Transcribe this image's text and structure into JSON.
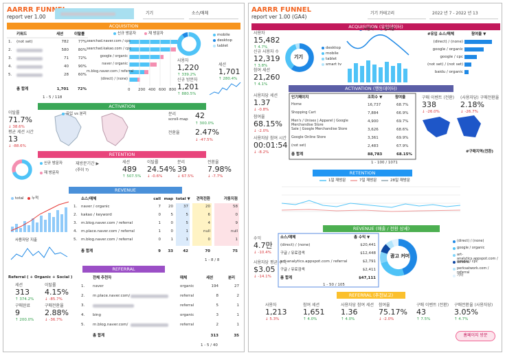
{
  "left": {
    "title": "AARRR FUNNEL",
    "subtitle": "report ver 1.00",
    "filters": [
      "기기",
      "소스/매체"
    ],
    "acquisition": {
      "header": "ACQUISITION",
      "table": {
        "columns": [
          "키워드",
          "세션",
          "이탈률"
        ],
        "rows": [
          {
            "rank": "1.",
            "keyword": "(not set)",
            "sessions": "782",
            "bounce": "77%"
          },
          {
            "rank": "2.",
            "sessions": "580",
            "bounce": "80%"
          },
          {
            "rank": "3.",
            "sessions": "71",
            "bounce": "72%"
          },
          {
            "rank": "4.",
            "sessions": "40",
            "bounce": "90%"
          },
          {
            "rank": "5.",
            "sessions": "28",
            "bounce": "60%"
          }
        ],
        "total": {
          "label": "총 합계",
          "sessions": "1,701",
          "bounce": "72%"
        },
        "pagination": "1 - 5 / 118"
      },
      "legend": [
        "신규 방문자",
        "재 방문자"
      ],
      "sources": [
        "searchad.naver.com / cpc",
        "searchad.kakao.com / cpc",
        "google / organic",
        "naver / organic",
        "m.blog.naver.com / referral",
        "(direct) / (none)"
      ],
      "axis": [
        "0",
        "200",
        "400",
        "600",
        "800"
      ],
      "device_legend": [
        "mobile",
        "desktop",
        "tablet"
      ],
      "users": {
        "label": "사용자",
        "value": "1,220",
        "change": "↑ 339.2%"
      },
      "new_users": {
        "label": "신규 방문자",
        "value": "1,201",
        "change": "↑ 880.5%"
      },
      "sessions": {
        "label": "세션",
        "value": "1,701",
        "change": "↑ 280.4%"
      }
    },
    "activation": {
      "header": "ACTIVATION",
      "map_legend": "유입 vs 분리",
      "bounce": {
        "label": "이탈률",
        "value": "71.7%",
        "change": "↓ 38.6%"
      },
      "duration": {
        "label": "평균 세션 시간",
        "value": "13",
        "change": "↓ -88.6%"
      },
      "scroll": {
        "label": "분리",
        "sublabel": "scroll-map",
        "value": "42",
        "change": "↑ 300.0%"
      },
      "conversion": {
        "label": "전환율",
        "value": "2.47%",
        "change": "↓ -47.5%"
      }
    },
    "retention": {
      "header": "RETENTION",
      "legend": [
        "신규 방문자",
        "재 방문자"
      ],
      "period": "재방문기간 ▶",
      "period_sub": "(주이 ?)",
      "stats": [
        {
          "label": "세션",
          "value": "489",
          "change": "↑ 507.5%"
        },
        {
          "label": "이탈률",
          "value": "24.54%",
          "change": "↓ -0.6%"
        },
        {
          "label": "분리",
          "value": "39",
          "change": "↓ 67.5%"
        },
        {
          "label": "전환율",
          "value": "7.98%",
          "change": "↓ -7.7%"
        }
      ]
    },
    "revenue": {
      "header": "REVENUE",
      "chart_legend": [
        "total",
        "누적"
      ],
      "chart2_legend": "사용자당 지출",
      "table": {
        "columns": [
          "소스/매체",
          "call",
          "map",
          "total ▼",
          "견적전환",
          "거동지점"
        ],
        "rows": [
          {
            "rank": "1.",
            "source": "naver / organic",
            "values": [
              "7",
              "20",
              "37",
              "20",
              "58"
            ]
          },
          {
            "rank": "2.",
            "source": "kakao / keyword",
            "values": [
              "0",
              "5",
              "5",
              "6",
              "0"
            ]
          },
          {
            "rank": "3.",
            "source": "m.blog.naver.com / referral",
            "values": [
              "1",
              "0",
              "5",
              "4",
              "9"
            ]
          },
          {
            "rank": "4.",
            "source": "m.place.naver.com / referral",
            "values": [
              "1",
              "0",
              "1",
              "null",
              "null"
            ]
          },
          {
            "rank": "5.",
            "source": "m.blog.naver.com / referral",
            "values": [
              "0",
              "1",
              "1",
              "0",
              "1"
            ]
          }
        ],
        "total": {
          "label": "총 합계",
          "values": [
            "9",
            "33",
            "42",
            "70",
            "75"
          ]
        },
        "pagination": "1 - 8 / 8"
      }
    },
    "referral": {
      "header": "REFERRAL",
      "title": "Referral ( + Organic + Social )",
      "stats": [
        {
          "label": "세션",
          "value": "313",
          "change": "↑ 374.2%"
        },
        {
          "label": "이탈률",
          "value": "4.15%",
          "change": "↓ -85.7%"
        },
        {
          "label": "구매완료",
          "value": "9",
          "change": "↑ 200.0%"
        },
        {
          "label": "구매전환율",
          "value": "2.88%",
          "change": "↓ -36.7%"
        }
      ],
      "table": {
        "columns": [
          "전체 추천자",
          "매체",
          "세션",
          "분리"
        ],
        "rows": [
          {
            "rank": "1.",
            "name": "naver",
            "medium": "organic",
            "sessions": "194",
            "conv": "27"
          },
          {
            "rank": "2.",
            "name": "m.place.naver.com/",
            "medium": "referral",
            "sessions": "8",
            "conv": "2"
          },
          {
            "rank": "3.",
            "medium": "referral",
            "sessions": "5",
            "conv": "1"
          },
          {
            "rank": "4.",
            "name": "bing",
            "medium": "organic",
            "sessions": "3",
            "conv": "1"
          },
          {
            "rank": "5.",
            "name": "m.blog.naver.com/",
            "medium": "referral",
            "sessions": "2",
            "conv": "1"
          }
        ],
        "total": {
          "label": "총 합계",
          "sessions": "313",
          "conv": "35"
        },
        "pagination": "1 - 5 / 40"
      }
    }
  },
  "right": {
    "title": "AARRR FUNNEL",
    "subtitle": "report ver 1.00 (GA4)",
    "filters": [
      "기기 카테고리",
      "2022 년 7 - 2022 년 13"
    ],
    "acquisition": {
      "header": "ACQUISITION (유입데이터)",
      "stats": [
        {
          "label": "사용자",
          "value": "15,482",
          "change": "↑ 4.7%"
        },
        {
          "label": "신규 사용자 수",
          "value": "12,319",
          "change": "↑ 3.8%"
        },
        {
          "label": "참여 세션",
          "value": "21,260",
          "change": "↑ 4.1%"
        }
      ],
      "donut_label": "기기",
      "device_legend": [
        "desktop",
        "mobile",
        "tablet",
        "smart tv"
      ],
      "chart_legend": [
        "사용자",
        "참여율"
      ],
      "table": {
        "columns": [
          "#유입 소스/매체",
          "참여율 ▼"
        ],
        "rows": [
          "(direct) / (none)",
          "google / organic",
          "google / cpc",
          "(not set) / (not set)",
          "baidu / organic"
        ]
      }
    },
    "activation": {
      "header": "ACTIVATION (행동데이터)",
      "stats": [
        {
          "label": "사용자당 세션",
          "value": "1.37",
          "change": "↓ -0.8%"
        },
        {
          "label": "참여율",
          "value": "68.15%",
          "change": "↓ -2.0%"
        },
        {
          "label": "사용자당 참여 시간",
          "value": "00:01:54",
          "change": "↓ -8.2%"
        }
      ],
      "table": {
        "columns": [
          "인기페이지",
          "조회수 ▼",
          "참여율"
        ],
        "rows": [
          [
            "Home",
            "16,737",
            "68.7%"
          ],
          [
            "Shopping Cart",
            "7,884",
            "66.9%"
          ],
          [
            "Men's / Unisex | Apparel | Google Merchandise Store",
            "4,900",
            "69.7%"
          ],
          [
            "Sale | Google Merchandise Store",
            "3,626",
            "68.6%"
          ],
          [
            "Google Online Store",
            "3,361",
            "69.9%"
          ],
          [
            "(not set)",
            "2,483",
            "67.9%"
          ]
        ],
        "total": [
          "총 합계",
          "88,783",
          "68.15%"
        ],
        "pagination": "1 - 100 / 1071"
      },
      "purchases": {
        "label": "구매 이벤트 (전환)",
        "value": "338",
        "change": "↓ -26.0%"
      },
      "purchase_rate": {
        "label": "(사용자당) 구매전환율",
        "value": "2.18%",
        "change": "↓ -26.7%"
      },
      "map_label": "#구매지역(전환)"
    },
    "retention": {
      "header": "RETENTION",
      "legend": [
        "1일 재방문",
        "7일 재방문",
        "28일 재방문"
      ]
    },
    "revenue": {
      "header": "REVENUE (매출 / 전환 상세)",
      "stats": [
        {
          "label": "수익",
          "value": "4.7만",
          "change": "↓ -10.4%"
        },
        {
          "label": "사용자당 평균 수익",
          "value": "$3.05",
          "change": "↓ -14.1%"
        }
      ],
      "table": {
        "columns": [
          "소스/매체",
          "총 수익 ▼"
        ],
        "rows": [
          [
            "(direct) / (none)",
            "$20,441"
          ],
          [
            "구글 / 유료검색",
            "$12,448"
          ],
          [
            "art-analytics.appspot.com / referral",
            "$2,791"
          ],
          [
            "구글 / 유료검색",
            "$2,411"
          ]
        ],
        "total": [
          "총 합계",
          "$47,111"
        ],
        "pagination": "1 - 50 / 105"
      },
      "donut_label": "광고 커머",
      "legend": [
        "(direct) / (none)",
        "google / organic",
        "art-analytics.appspot.com / referral",
        "google / cpc",
        "perksatwork.com / referral",
        "기타"
      ]
    },
    "referral": {
      "header": "REFERRAL (추천보고)",
      "stats": [
        {
          "label": "사용자",
          "value": "1,213",
          "change": "↓ 5.3%"
        },
        {
          "label": "참여 세션",
          "value": "1,651",
          "change": "↑ 4.0%"
        },
        {
          "label": "사용자당 참여 세션",
          "value": "1.36",
          "change": "↑ 4.0%"
        },
        {
          "label": "참여율",
          "value": "75.17%",
          "change": "↓ -2.0%"
        },
        {
          "label": "구매 이벤트 (전환)",
          "value": "43",
          "change": "↑ 7.5%"
        },
        {
          "label": "구매전환율 (사용자당)",
          "value": "3.05%",
          "change": "↑ 4.7%"
        }
      ]
    },
    "button": "홈페이지 방문"
  }
}
